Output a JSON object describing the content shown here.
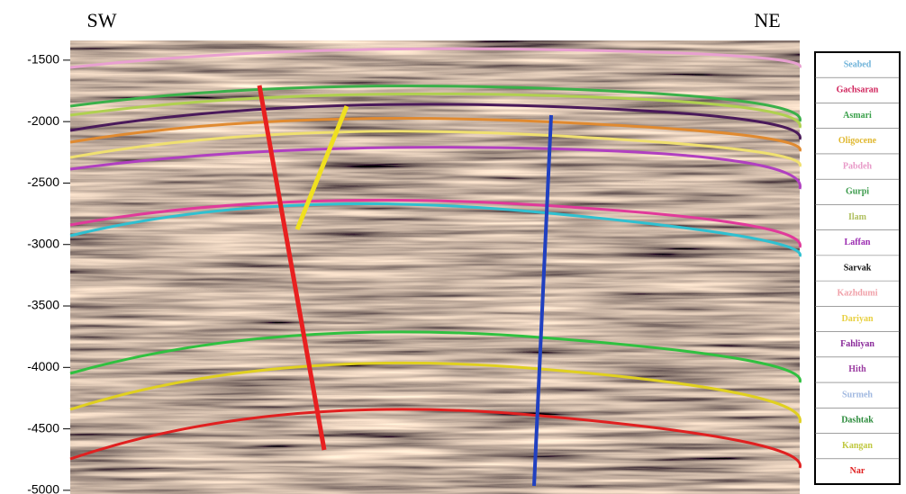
{
  "section": {
    "left_label": "SW",
    "right_label": "NE",
    "ylim": [
      -5030,
      -1340
    ],
    "yticks": [
      -1500,
      -2000,
      -2500,
      -3000,
      -3500,
      -4000,
      -4500,
      -5000
    ]
  },
  "legend": [
    {
      "name": "Seabed",
      "color": "#6fb3d9"
    },
    {
      "name": "Gachsaran",
      "color": "#d0245c"
    },
    {
      "name": "Asmari",
      "color": "#3aa04a"
    },
    {
      "name": "Oligocene",
      "color": "#e0b830"
    },
    {
      "name": "Pabdeh",
      "color": "#e89ac8"
    },
    {
      "name": "Gurpi",
      "color": "#3a9a4a"
    },
    {
      "name": "Ilam",
      "color": "#b0c060"
    },
    {
      "name": "Laffan",
      "color": "#9a2ab0"
    },
    {
      "name": "Sarvak",
      "color": "#111111"
    },
    {
      "name": "Kazhdumi",
      "color": "#f0a0a8"
    },
    {
      "name": "Dariyan",
      "color": "#e8d040"
    },
    {
      "name": "Fahliyan",
      "color": "#8a2a9a"
    },
    {
      "name": "Hith",
      "color": "#9a3aa0"
    },
    {
      "name": "Surmeh",
      "color": "#a0b8e0"
    },
    {
      "name": "Dashtak",
      "color": "#2a8a3a"
    },
    {
      "name": "Kangan",
      "color": "#c0c840"
    },
    {
      "name": "Nar",
      "color": "#e02020"
    }
  ]
}
